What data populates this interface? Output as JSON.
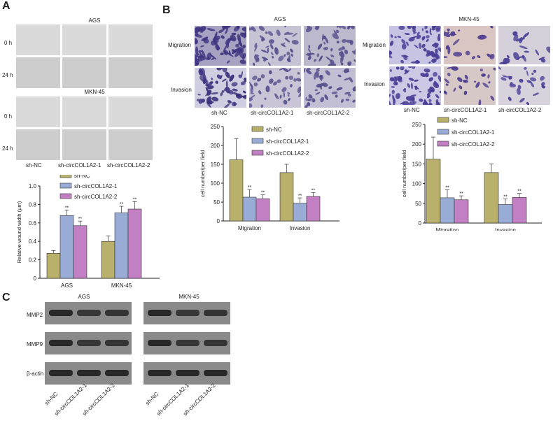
{
  "panels": {
    "a": "A",
    "b": "B",
    "c": "C"
  },
  "panel_a": {
    "line1": "AGS",
    "line2": "MKN-45",
    "times": [
      "0 h",
      "24 h"
    ],
    "groups": [
      "sh-NC",
      "sh-circCOL1A2-1",
      "sh-circCOL1A2-2"
    ]
  },
  "panel_b": {
    "line1": "AGS",
    "line2": "MKN-45",
    "rows": [
      "Migration",
      "Invasion"
    ],
    "groups": [
      "sh-NC",
      "sh-circCOL1A2-1",
      "sh-circCOL1A2-2"
    ]
  },
  "panel_c": {
    "line1": "AGS",
    "line2": "MKN-45",
    "proteins": [
      "MMP2",
      "MMP9",
      "β-actin"
    ],
    "groups": [
      "sh-NC",
      "sh-circCOL1A2-1",
      "sh-circCOL1A2-2"
    ]
  },
  "colors": {
    "sh_nc": "#b9b06c",
    "sh1": "#98acd6",
    "sh2": "#c27fc4"
  },
  "chart_data": [
    {
      "type": "bar",
      "ylabel": "Relative wound width (μm)",
      "categories": [
        "AGS",
        "MKN-45"
      ],
      "ylim": [
        0,
        1.0
      ],
      "yticks": [
        "0",
        "0.2",
        "0.4",
        "0.6",
        "0.8",
        "1.0"
      ],
      "legend": "top-left",
      "series": [
        {
          "name": "sh-NC",
          "values": [
            0.27,
            0.4
          ],
          "errors": [
            0.03,
            0.06
          ],
          "marks": [
            "",
            ""
          ]
        },
        {
          "name": "sh-circCOL1A2-1",
          "values": [
            0.68,
            0.71
          ],
          "errors": [
            0.06,
            0.07
          ],
          "marks": [
            "**",
            "**"
          ]
        },
        {
          "name": "sh-circCOL1A2-2",
          "values": [
            0.57,
            0.75
          ],
          "errors": [
            0.05,
            0.08
          ],
          "marks": [
            "**",
            "**"
          ]
        }
      ]
    },
    {
      "type": "bar",
      "ylabel": "cell number/per field",
      "categories": [
        "Migration",
        "Invasion"
      ],
      "ylim": [
        0,
        250
      ],
      "yticks": [
        "0",
        "50",
        "100",
        "150",
        "200",
        "250"
      ],
      "legend": "top-center",
      "series": [
        {
          "name": "sh-NC",
          "values": [
            162,
            128
          ],
          "errors": [
            56,
            22
          ],
          "marks": [
            "",
            ""
          ]
        },
        {
          "name": "sh-circCOL1A2-1",
          "values": [
            63,
            47
          ],
          "errors": [
            20,
            14
          ],
          "marks": [
            "**",
            "**"
          ]
        },
        {
          "name": "sh-circCOL1A2-2",
          "values": [
            59,
            65
          ],
          "errors": [
            10,
            10
          ],
          "marks": [
            "**",
            "**"
          ]
        }
      ]
    },
    {
      "type": "bar",
      "ylabel": "cell number/per field",
      "categories": [
        "Migration",
        "Invasion"
      ],
      "ylim": [
        0,
        250
      ],
      "yticks": [
        "0",
        "50",
        "100",
        "150",
        "200",
        "250"
      ],
      "legend": "top-center",
      "series": [
        {
          "name": "sh-NC",
          "values": [
            162,
            128
          ],
          "errors": [
            56,
            22
          ],
          "marks": [
            "",
            ""
          ]
        },
        {
          "name": "sh-circCOL1A2-1",
          "values": [
            64,
            47
          ],
          "errors": [
            20,
            14
          ],
          "marks": [
            "**",
            "**"
          ]
        },
        {
          "name": "sh-circCOL1A2-2",
          "values": [
            59,
            65
          ],
          "errors": [
            10,
            10
          ],
          "marks": [
            "**",
            "**"
          ]
        }
      ]
    }
  ]
}
